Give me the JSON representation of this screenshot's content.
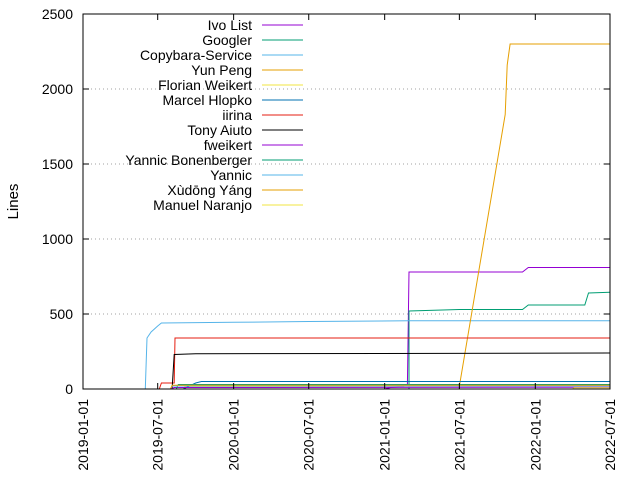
{
  "chart_data": {
    "type": "line",
    "title": "",
    "xlabel": "",
    "ylabel": "Lines",
    "ylim": [
      0,
      2500
    ],
    "xlim": [
      "2019-01-01",
      "2022-07-01"
    ],
    "x_ticks": [
      "2019-01-01",
      "2019-07-01",
      "2020-01-01",
      "2020-07-01",
      "2021-01-01",
      "2021-07-01",
      "2022-01-01",
      "2022-07-01"
    ],
    "y_ticks": [
      0,
      500,
      1000,
      1500,
      2000,
      2500
    ],
    "grid": "horizontal dotted",
    "legend_position": "top-left",
    "series": [
      {
        "name": "Ivo List",
        "color": "#9400d3",
        "points": [
          [
            "2019-01-01",
            0
          ],
          [
            "2021-01-01",
            0
          ],
          [
            "2021-01-15",
            10
          ],
          [
            "2021-02-15",
            15
          ],
          [
            "2021-02-25",
            30
          ],
          [
            "2021-03-01",
            780
          ],
          [
            "2021-12-01",
            780
          ],
          [
            "2021-12-15",
            810
          ],
          [
            "2022-07-01",
            810
          ]
        ]
      },
      {
        "name": "Googler",
        "color": "#009e73",
        "points": [
          [
            "2019-01-01",
            0
          ],
          [
            "2021-03-01",
            0
          ],
          [
            "2021-03-01",
            520
          ],
          [
            "2021-07-01",
            530
          ],
          [
            "2021-12-01",
            530
          ],
          [
            "2021-12-15",
            560
          ],
          [
            "2022-05-01",
            560
          ],
          [
            "2022-05-10",
            640
          ],
          [
            "2022-07-01",
            645
          ]
        ]
      },
      {
        "name": "Copybara-Service",
        "color": "#56b4e9",
        "points": [
          [
            "2019-01-01",
            0
          ],
          [
            "2019-06-01",
            0
          ],
          [
            "2019-06-05",
            340
          ],
          [
            "2019-06-15",
            380
          ],
          [
            "2019-07-01",
            420
          ],
          [
            "2019-07-10",
            440
          ],
          [
            "2020-01-01",
            445
          ],
          [
            "2020-07-01",
            450
          ],
          [
            "2021-03-01",
            455
          ],
          [
            "2022-07-01",
            455
          ]
        ]
      },
      {
        "name": "Yun Peng",
        "color": "#e69f00",
        "points": [
          [
            "2019-01-01",
            0
          ],
          [
            "2021-07-01",
            0
          ],
          [
            "2021-07-01",
            20
          ],
          [
            "2021-10-20",
            1830
          ],
          [
            "2021-10-25",
            2160
          ],
          [
            "2021-11-01",
            2300
          ],
          [
            "2022-07-01",
            2300
          ]
        ]
      },
      {
        "name": "Florian Weikert",
        "color": "#f0e442",
        "points": [
          [
            "2019-01-01",
            0
          ],
          [
            "2019-09-01",
            0
          ],
          [
            "2019-09-05",
            15
          ],
          [
            "2022-07-01",
            20
          ]
        ]
      },
      {
        "name": "Marcel Hlopko",
        "color": "#0072b2",
        "points": [
          [
            "2019-01-01",
            0
          ],
          [
            "2019-09-01",
            0
          ],
          [
            "2019-10-01",
            40
          ],
          [
            "2019-10-15",
            50
          ],
          [
            "2022-07-01",
            50
          ]
        ]
      },
      {
        "name": "iirina",
        "color": "#e51e10",
        "points": [
          [
            "2019-01-01",
            0
          ],
          [
            "2019-07-05",
            0
          ],
          [
            "2019-07-10",
            40
          ],
          [
            "2019-08-10",
            40
          ],
          [
            "2019-08-12",
            340
          ],
          [
            "2022-07-01",
            340
          ]
        ]
      },
      {
        "name": "Tony Aiuto",
        "color": "#000000",
        "points": [
          [
            "2019-01-01",
            0
          ],
          [
            "2019-08-05",
            0
          ],
          [
            "2019-08-10",
            230
          ],
          [
            "2019-10-01",
            235
          ],
          [
            "2022-07-01",
            240
          ]
        ]
      },
      {
        "name": "fweikert",
        "color": "#9400d3",
        "points": [
          [
            "2019-01-01",
            0
          ],
          [
            "2019-08-01",
            0
          ],
          [
            "2019-08-10",
            10
          ],
          [
            "2022-07-01",
            12
          ]
        ]
      },
      {
        "name": "Yannic Bonenberger",
        "color": "#009e73",
        "points": [
          [
            "2019-01-01",
            0
          ],
          [
            "2019-08-15",
            0
          ],
          [
            "2019-08-20",
            30
          ],
          [
            "2022-07-01",
            30
          ]
        ]
      },
      {
        "name": "Yannic",
        "color": "#56b4e9",
        "points": [
          [
            "2019-01-01",
            0
          ],
          [
            "2019-08-01",
            0
          ],
          [
            "2019-08-05",
            20
          ],
          [
            "2022-07-01",
            20
          ]
        ]
      },
      {
        "name": "Xùdōng Yáng",
        "color": "#e69f00",
        "points": [
          [
            "2019-01-01",
            0
          ],
          [
            "2019-08-01",
            0
          ],
          [
            "2019-08-05",
            25
          ],
          [
            "2022-07-01",
            25
          ]
        ]
      },
      {
        "name": "Manuel Naranjo",
        "color": "#f0e442",
        "points": [
          [
            "2019-01-01",
            0
          ],
          [
            "2022-04-01",
            0
          ],
          [
            "2022-04-05",
            8
          ],
          [
            "2022-07-01",
            8
          ]
        ]
      }
    ]
  }
}
